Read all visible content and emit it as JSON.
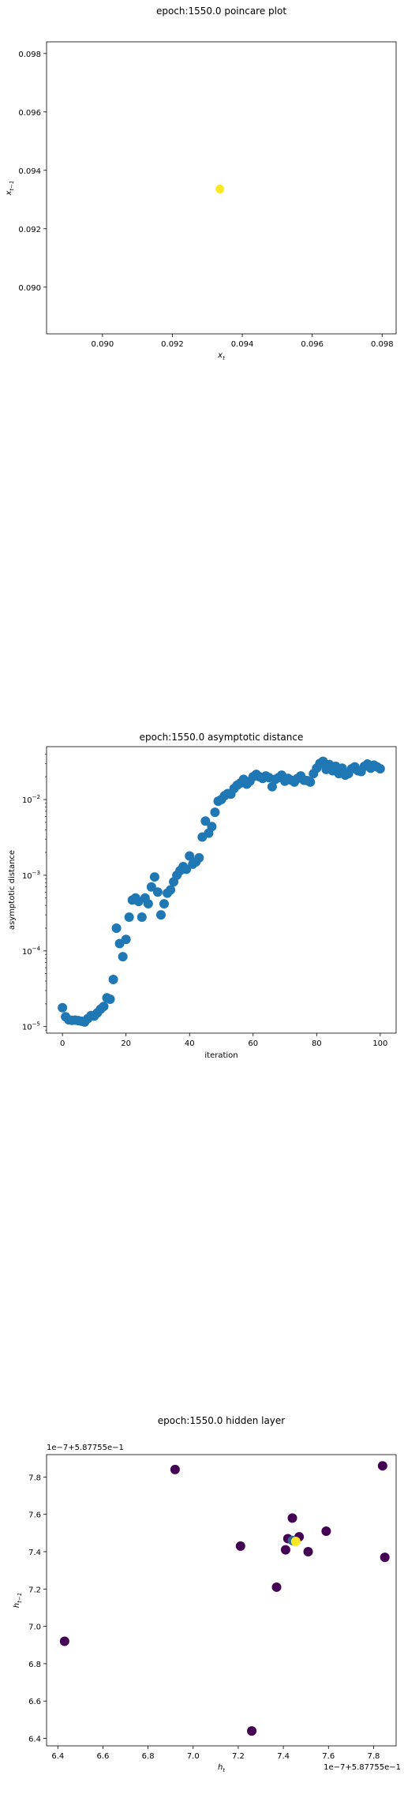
{
  "chart_data": [
    {
      "type": "scatter",
      "title": "epoch:1550.0 poincare plot",
      "xlabel": "x_t",
      "ylabel": "x_{t-1}",
      "xlim": [
        0.0884,
        0.0984
      ],
      "ylim": [
        0.0884,
        0.0984
      ],
      "xticks": [
        "0.090",
        "0.092",
        "0.094",
        "0.096",
        "0.098"
      ],
      "xtick_values": [
        0.09,
        0.092,
        0.094,
        0.096,
        0.098
      ],
      "yticks": [
        "0.090",
        "0.092",
        "0.094",
        "0.096",
        "0.098"
      ],
      "ytick_values": [
        0.09,
        0.092,
        0.094,
        0.096,
        0.098
      ],
      "grid": false,
      "colors": {
        "point": "#fde725"
      },
      "points": [
        {
          "x": 0.09336,
          "y": 0.09336
        }
      ]
    },
    {
      "type": "scatter",
      "title": "epoch:1550.0 asymptotic distance",
      "xlabel": "iteration",
      "ylabel": "asymptotic distance",
      "yscale": "log",
      "xlim": [
        -5,
        105
      ],
      "ylim": [
        8.2e-06,
        0.05
      ],
      "xticks": [
        "0",
        "20",
        "40",
        "60",
        "80",
        "100"
      ],
      "xtick_values": [
        0,
        20,
        40,
        60,
        80,
        100
      ],
      "yticks": [
        "10",
        "10",
        "10",
        "10"
      ],
      "ytick_exponents": [
        "−5",
        "−4",
        "−3",
        "−2"
      ],
      "ytick_values": [
        1e-05,
        0.0001,
        0.001,
        0.01
      ],
      "grid": false,
      "colors": {
        "point": "#1f77b4"
      },
      "x": [
        0,
        1,
        2,
        3,
        4,
        5,
        6,
        7,
        8,
        9,
        10,
        11,
        12,
        13,
        14,
        15,
        16,
        17,
        18,
        19,
        20,
        21,
        22,
        23,
        24,
        25,
        26,
        27,
        28,
        29,
        30,
        31,
        32,
        33,
        34,
        35,
        36,
        37,
        38,
        39,
        40,
        41,
        42,
        43,
        44,
        45,
        46,
        47,
        48,
        49,
        50,
        51,
        52,
        53,
        54,
        55,
        56,
        57,
        58,
        59,
        60,
        61,
        62,
        63,
        64,
        65,
        66,
        67,
        68,
        69,
        70,
        71,
        72,
        73,
        74,
        75,
        76,
        77,
        78,
        79,
        80,
        81,
        82,
        83,
        84,
        85,
        86,
        87,
        88,
        89,
        90,
        91,
        92,
        93,
        94,
        95,
        96,
        97,
        98,
        99,
        100
      ],
      "y": [
        1.78e-05,
        1.35e-05,
        1.23e-05,
        1.21e-05,
        1.22e-05,
        1.2e-05,
        1.18e-05,
        1.15e-05,
        1.28e-05,
        1.4e-05,
        1.38e-05,
        1.52e-05,
        1.7e-05,
        1.85e-05,
        2.4e-05,
        2.3e-05,
        4.2e-05,
        0.0002,
        0.000125,
        8.4e-05,
        0.000142,
        0.00028,
        0.00047,
        0.0005,
        0.00045,
        0.00028,
        0.0005,
        0.00042,
        0.0007,
        0.00095,
        0.0006,
        0.0003,
        0.00042,
        0.00058,
        0.00064,
        0.00082,
        0.001,
        0.00115,
        0.0013,
        0.0012,
        0.0018,
        0.0014,
        0.0015,
        0.0017,
        0.0032,
        0.0052,
        0.0036,
        0.0044,
        0.0068,
        0.0095,
        0.01,
        0.0112,
        0.012,
        0.0118,
        0.014,
        0.0155,
        0.0165,
        0.0185,
        0.016,
        0.0175,
        0.02,
        0.0215,
        0.02,
        0.019,
        0.0205,
        0.0195,
        0.0148,
        0.0185,
        0.0195,
        0.021,
        0.0175,
        0.019,
        0.018,
        0.017,
        0.019,
        0.0205,
        0.018,
        0.0178,
        0.017,
        0.022,
        0.026,
        0.03,
        0.032,
        0.025,
        0.029,
        0.024,
        0.0275,
        0.022,
        0.026,
        0.021,
        0.022,
        0.0255,
        0.027,
        0.024,
        0.0235,
        0.0275,
        0.0295,
        0.026,
        0.0285,
        0.027,
        0.0255
      ]
    },
    {
      "type": "scatter",
      "title": "epoch:1550.0 hidden layer",
      "xlabel": "h_t",
      "ylabel": "h_{t-1}",
      "offset_label_y": "1e−7+5.87755e−1",
      "offset_label_x": "1e−7+5.87755e−1",
      "xlim": [
        6.35,
        7.9
      ],
      "ylim": [
        6.36,
        7.92
      ],
      "xticks": [
        "6.4",
        "6.6",
        "6.8",
        "7.0",
        "7.2",
        "7.4",
        "7.6",
        "7.8"
      ],
      "xtick_values": [
        6.4,
        6.6,
        6.8,
        7.0,
        7.2,
        7.4,
        7.6,
        7.8
      ],
      "yticks": [
        "6.4",
        "6.6",
        "6.8",
        "7.0",
        "7.2",
        "7.4",
        "7.6",
        "7.8"
      ],
      "ytick_values": [
        6.4,
        6.6,
        6.8,
        7.0,
        7.2,
        7.4,
        7.6,
        7.8
      ],
      "grid": false,
      "colors": {
        "early": "#440154",
        "late": "#fde725"
      },
      "points": [
        {
          "x": 6.43,
          "y": 6.92,
          "c": "#440154"
        },
        {
          "x": 6.92,
          "y": 7.84,
          "c": "#440154"
        },
        {
          "x": 7.21,
          "y": 7.43,
          "c": "#440154"
        },
        {
          "x": 7.26,
          "y": 6.44,
          "c": "#440154"
        },
        {
          "x": 7.37,
          "y": 7.21,
          "c": "#440154"
        },
        {
          "x": 7.41,
          "y": 7.41,
          "c": "#440154"
        },
        {
          "x": 7.42,
          "y": 7.47,
          "c": "#440154"
        },
        {
          "x": 7.44,
          "y": 7.58,
          "c": "#440154"
        },
        {
          "x": 7.47,
          "y": 7.48,
          "c": "#440154"
        },
        {
          "x": 7.51,
          "y": 7.4,
          "c": "#440154"
        },
        {
          "x": 7.59,
          "y": 7.51,
          "c": "#440154"
        },
        {
          "x": 7.84,
          "y": 7.86,
          "c": "#440154"
        },
        {
          "x": 7.85,
          "y": 7.37,
          "c": "#440154"
        },
        {
          "x": 7.44,
          "y": 7.46,
          "c": "#31688e"
        },
        {
          "x": 7.455,
          "y": 7.455,
          "c": "#fde725"
        }
      ]
    }
  ]
}
